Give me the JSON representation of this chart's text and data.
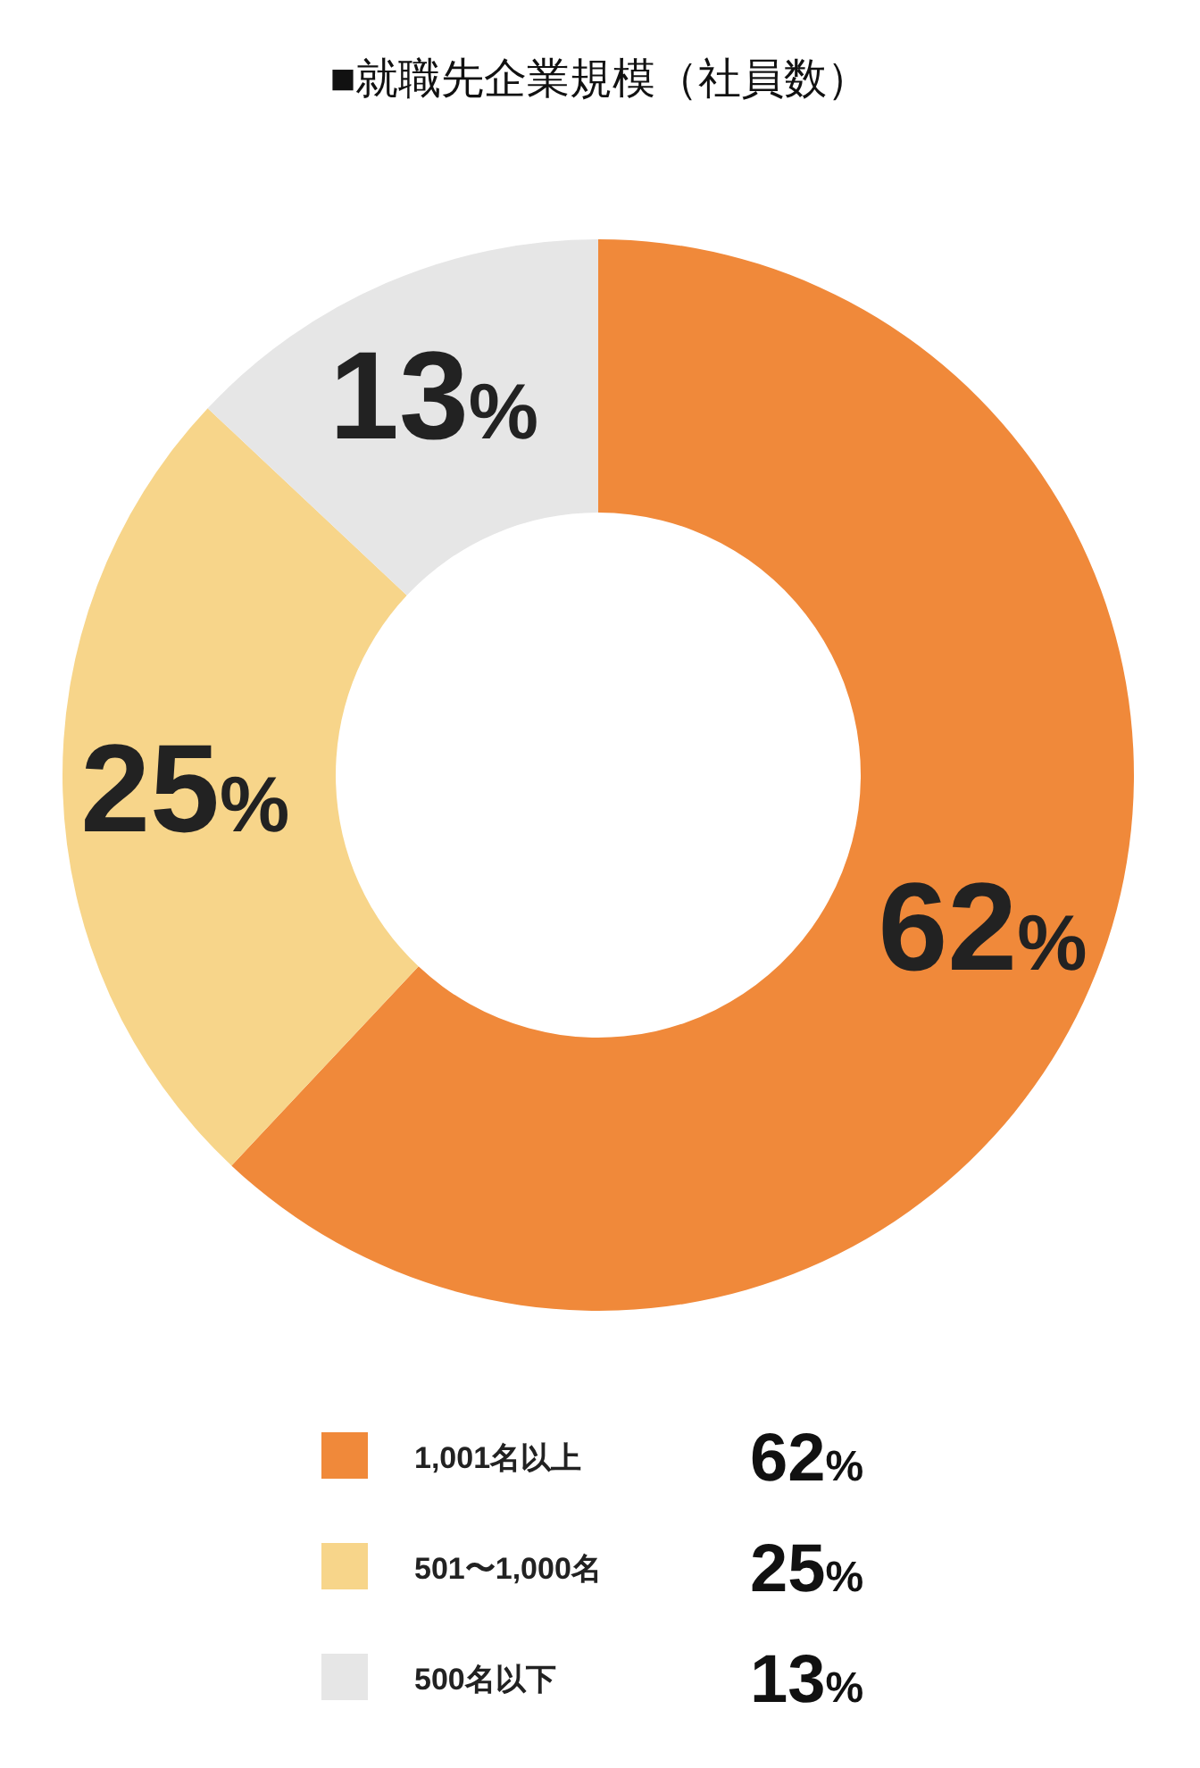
{
  "chart_data": {
    "type": "donut",
    "title": "■就職先企業規模（社員数）",
    "categories": [
      "1,001名以上",
      "501〜1,000名",
      "500名以下"
    ],
    "values": [
      62,
      25,
      13
    ],
    "colors": [
      "#f0893a",
      "#f7d58a",
      "#e6e6e6"
    ],
    "value_labels": [
      "62%",
      "25%",
      "13%"
    ],
    "legend": "bottom"
  }
}
